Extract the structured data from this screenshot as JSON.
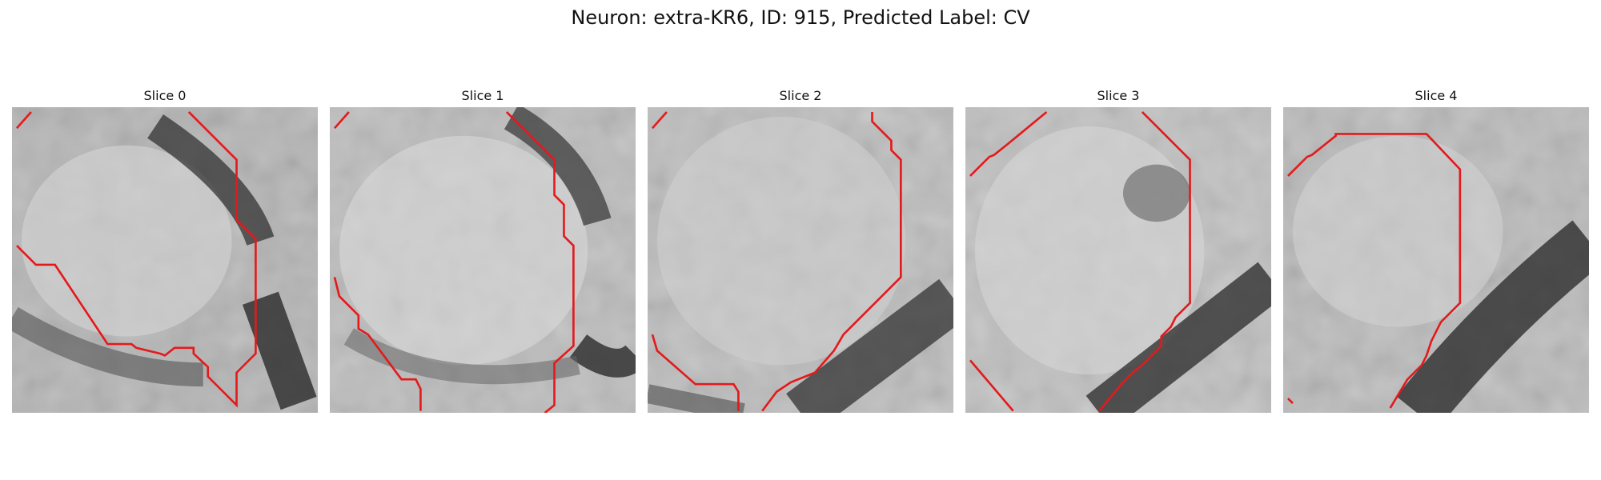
{
  "figure": {
    "title": "Neuron: extra-KR6, ID: 915, Predicted Label: CV"
  },
  "colors": {
    "contour": "#e31a1c"
  },
  "slices": [
    {
      "title": "Slice 0"
    },
    {
      "title": "Slice 1"
    },
    {
      "title": "Slice 2"
    },
    {
      "title": "Slice 3"
    },
    {
      "title": "Slice 4"
    }
  ]
}
